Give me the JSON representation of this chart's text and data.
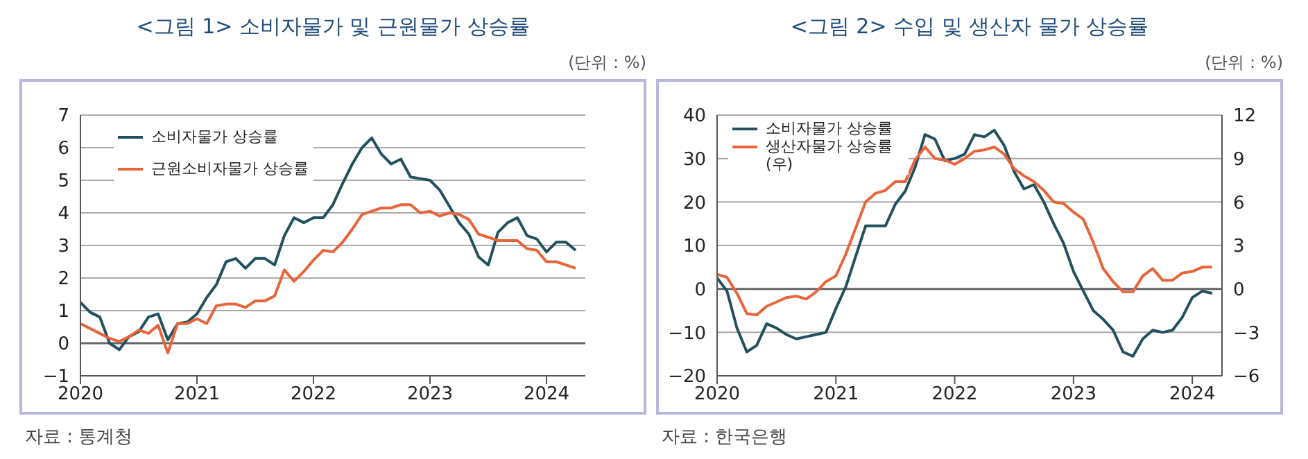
{
  "chart_data": [
    {
      "type": "line",
      "title": "<그림 1> 소비자물가 및 근원물가 상승률",
      "annotations": [
        "(단위 : %)",
        "자료 : 통계청"
      ],
      "x": [
        "2020-01",
        "2020-02",
        "2020-03",
        "2020-04",
        "2020-05",
        "2020-06",
        "2020-07",
        "2020-08",
        "2020-09",
        "2020-10",
        "2020-11",
        "2020-12",
        "2021-01",
        "2021-02",
        "2021-03",
        "2021-04",
        "2021-05",
        "2021-06",
        "2021-07",
        "2021-08",
        "2021-09",
        "2021-10",
        "2021-11",
        "2021-12",
        "2022-01",
        "2022-02",
        "2022-03",
        "2022-04",
        "2022-05",
        "2022-06",
        "2022-07",
        "2022-08",
        "2022-09",
        "2022-10",
        "2022-11",
        "2022-12",
        "2023-01",
        "2023-02",
        "2023-03",
        "2023-04",
        "2023-05",
        "2023-06",
        "2023-07",
        "2023-08",
        "2023-09",
        "2023-10",
        "2023-11",
        "2023-12",
        "2024-01",
        "2024-02",
        "2024-03",
        "2024-04"
      ],
      "series": [
        {
          "name": "소비자물가 상승률",
          "color": "#22505e",
          "values": [
            1.25,
            0.95,
            0.8,
            0.0,
            -0.2,
            0.2,
            0.35,
            0.8,
            0.9,
            0.1,
            0.6,
            0.65,
            0.9,
            1.4,
            1.8,
            2.5,
            2.6,
            2.3,
            2.6,
            2.6,
            2.4,
            3.3,
            3.85,
            3.7,
            3.85,
            3.85,
            4.25,
            4.9,
            5.5,
            6.0,
            6.3,
            5.8,
            5.5,
            5.65,
            5.1,
            5.05,
            5.0,
            4.7,
            4.2,
            3.7,
            3.35,
            2.65,
            2.4,
            3.4,
            3.7,
            3.85,
            3.3,
            3.2,
            2.8,
            3.1,
            3.1,
            2.85
          ]
        },
        {
          "name": "근원소비자물가 상승률",
          "color": "#e8643a",
          "values": [
            0.6,
            0.45,
            0.3,
            0.15,
            0.05,
            0.2,
            0.4,
            0.3,
            0.55,
            -0.3,
            0.6,
            0.6,
            0.75,
            0.6,
            1.15,
            1.2,
            1.2,
            1.1,
            1.3,
            1.3,
            1.45,
            2.25,
            1.9,
            2.2,
            2.55,
            2.85,
            2.8,
            3.1,
            3.5,
            3.95,
            4.05,
            4.15,
            4.15,
            4.25,
            4.25,
            4.0,
            4.05,
            3.9,
            4.0,
            3.95,
            3.8,
            3.35,
            3.25,
            3.15,
            3.15,
            3.15,
            2.9,
            2.85,
            2.5,
            2.5,
            2.4,
            2.3
          ]
        }
      ],
      "xlim": [
        "2020-01",
        "2024-05"
      ],
      "xticks": [
        "2020",
        "2021",
        "2022",
        "2023",
        "2024"
      ],
      "ref_lines": [
        {
          "axis": "y",
          "value": 0,
          "color": "#666666"
        }
      ],
      "ylim": [
        -1,
        7
      ],
      "yticks": [
        {
          "value": -1,
          "label": "−1"
        },
        0,
        1,
        2,
        3,
        4,
        5,
        6,
        7
      ],
      "grid": "y",
      "legend": "top left",
      "marker": "none",
      "line_style": "solid"
    },
    {
      "type": "line",
      "title": "<그림 2> 수입 및 생산자 물가 상승률",
      "annotations": [
        "(단위 : %)",
        "자료 : 한국은행"
      ],
      "x": [
        "2020-01",
        "2020-02",
        "2020-03",
        "2020-04",
        "2020-05",
        "2020-06",
        "2020-07",
        "2020-08",
        "2020-09",
        "2020-10",
        "2020-11",
        "2020-12",
        "2021-01",
        "2021-02",
        "2021-03",
        "2021-04",
        "2021-05",
        "2021-06",
        "2021-07",
        "2021-08",
        "2021-09",
        "2021-10",
        "2021-11",
        "2021-12",
        "2022-01",
        "2022-02",
        "2022-03",
        "2022-04",
        "2022-05",
        "2022-06",
        "2022-07",
        "2022-08",
        "2022-09",
        "2022-10",
        "2022-11",
        "2022-12",
        "2023-01",
        "2023-02",
        "2023-03",
        "2023-04",
        "2023-05",
        "2023-06",
        "2023-07",
        "2023-08",
        "2023-09",
        "2023-10",
        "2023-11",
        "2023-12",
        "2024-01",
        "2024-02",
        "2024-03"
      ],
      "series": [
        {
          "name": "소비자물가 상승률",
          "color": "#22505e",
          "values": [
            2.5,
            -0.5,
            -9,
            -14.5,
            -13,
            -8,
            -9,
            -10.5,
            -11.5,
            -11,
            -10.5,
            -10,
            -4.5,
            0.5,
            7.5,
            14.5,
            14.5,
            14.5,
            19.5,
            22.5,
            28,
            35.5,
            34.5,
            29.5,
            30,
            31,
            35.5,
            35,
            36.5,
            33,
            27,
            23,
            24,
            20,
            15,
            10.5,
            4,
            -0.5,
            -5,
            -7,
            -9.5,
            -14.5,
            -15.5,
            -11.5,
            -9.5,
            -10,
            -9.5,
            -6.5,
            -2,
            -0.5,
            -1
          ]
        },
        {
          "name": "생산자물가 상승률(우)",
          "color": "#e8643a",
          "axis": "y2",
          "values": [
            1.0,
            0.8,
            -0.3,
            -1.7,
            -1.8,
            -1.2,
            -0.9,
            -0.6,
            -0.5,
            -0.7,
            -0.2,
            0.5,
            0.9,
            2.4,
            4.2,
            6.0,
            6.6,
            6.8,
            7.4,
            7.4,
            8.9,
            9.8,
            9.0,
            8.9,
            8.6,
            9.0,
            9.5,
            9.6,
            9.8,
            9.3,
            8.3,
            7.8,
            7.4,
            6.8,
            6.0,
            5.9,
            5.3,
            4.8,
            3.2,
            1.4,
            0.5,
            -0.2,
            -0.2,
            0.9,
            1.4,
            0.6,
            0.6,
            1.1,
            1.2,
            1.5,
            1.5
          ]
        }
      ],
      "xlim": [
        "2020-01",
        "2024-04"
      ],
      "xticks": [
        "2020",
        "2021",
        "2022",
        "2023",
        "2024"
      ],
      "ref_lines": [
        {
          "axis": "y",
          "value": 0,
          "color": "#666666"
        }
      ],
      "ylim": [
        -20,
        40
      ],
      "yticks": [
        {
          "value": -20,
          "label": "−20"
        },
        {
          "value": -10,
          "label": "−10"
        },
        0,
        10,
        20,
        30,
        40
      ],
      "y2lim": [
        -6,
        12
      ],
      "y2ticks": [
        {
          "value": -6,
          "label": "−6"
        },
        {
          "value": -3,
          "label": "−3"
        },
        0,
        3,
        6,
        9,
        12
      ],
      "grid": "y",
      "legend": "top left",
      "marker": "none",
      "line_style": "solid"
    }
  ]
}
